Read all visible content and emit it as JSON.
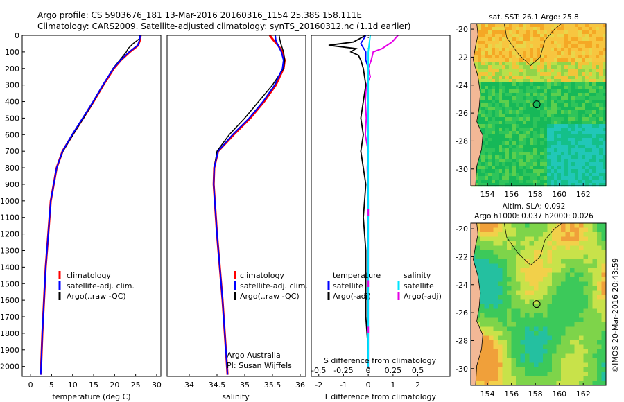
{
  "header": {
    "line1": "Argo profile: CS 5903676_181 13-Mar-2016 20160316_1154 25.38S 158.111E",
    "line2": "Climatology: CARS2009. Satellite-adjusted climatology: synTS_20160312.nc (1.1d earlier)"
  },
  "credit": "©IMOS 20-Mar-2016 20:43:59",
  "colors": {
    "climatology": "#ff0000",
    "satellite": "#0000ff",
    "argo": "#000000",
    "sat_diff_s": "#00e5ff",
    "argo_diff_s": "#e600e6"
  },
  "chart_data": [
    {
      "type": "line",
      "xlabel": "temperature (deg C)",
      "ylabel": "",
      "xlim": [
        -2,
        31
      ],
      "ylim": [
        2060,
        0
      ],
      "xticks": [
        0,
        5,
        10,
        15,
        20,
        25,
        30
      ],
      "yticks": [
        0,
        100,
        200,
        300,
        400,
        500,
        600,
        700,
        800,
        900,
        1000,
        1100,
        1200,
        1300,
        1400,
        1500,
        1600,
        1700,
        1800,
        1900,
        2000
      ],
      "legend": [
        "climatology",
        "satellite-adj. clim.",
        "Argo(..raw -QC)"
      ],
      "series": [
        {
          "name": "climatology",
          "depth": [
            0,
            30,
            60,
            100,
            150,
            200,
            300,
            400,
            500,
            600,
            700,
            800,
            1000,
            1200,
            1400,
            1600,
            1800,
            2000,
            2050
          ],
          "values": [
            26.2,
            26.0,
            25.6,
            23.6,
            21.5,
            19.8,
            17.3,
            15.0,
            12.5,
            10.0,
            7.6,
            6.2,
            4.8,
            4.2,
            3.6,
            3.2,
            2.8,
            2.5,
            2.4
          ]
        },
        {
          "name": "satellite-adj. clim.",
          "depth": [
            0,
            30,
            60,
            100,
            150,
            200,
            300,
            400,
            500,
            600,
            700,
            800,
            1000,
            1200,
            1400,
            1600,
            1800,
            2000,
            2050
          ],
          "values": [
            26.1,
            25.9,
            25.5,
            23.5,
            21.4,
            19.7,
            17.2,
            14.9,
            12.4,
            9.9,
            7.6,
            6.2,
            4.8,
            4.2,
            3.6,
            3.2,
            2.8,
            2.5,
            2.4
          ]
        },
        {
          "name": "Argo(..raw -QC)",
          "depth": [
            0,
            20,
            50,
            80,
            100,
            150,
            200,
            300,
            400,
            500,
            600,
            700,
            800,
            1000,
            1200,
            1400,
            1600,
            1800,
            2000
          ],
          "values": [
            26.0,
            25.9,
            24.4,
            23.2,
            22.8,
            21.2,
            19.6,
            17.3,
            15.0,
            12.6,
            10.1,
            7.7,
            6.2,
            4.8,
            4.2,
            3.6,
            3.2,
            2.8,
            2.5
          ]
        }
      ]
    },
    {
      "type": "line",
      "xlabel": "salinity",
      "ylabel": "",
      "xlim": [
        33.6,
        36.1
      ],
      "ylim": [
        2060,
        0
      ],
      "xticks": [
        34,
        34.5,
        35,
        35.5,
        36
      ],
      "legend": [
        "climatology",
        "satellite-adj. clim.",
        "Argo(..raw -QC)"
      ],
      "annotations": [
        "Argo Australia",
        "PI: Susan Wijffels"
      ],
      "series": [
        {
          "name": "climatology",
          "depth": [
            0,
            30,
            60,
            100,
            150,
            200,
            300,
            400,
            500,
            600,
            700,
            800,
            900,
            1000,
            1200,
            1400,
            1600,
            1800,
            2000,
            2050
          ],
          "values": [
            35.45,
            35.52,
            35.6,
            35.68,
            35.72,
            35.7,
            35.56,
            35.35,
            35.1,
            34.8,
            34.52,
            34.45,
            34.44,
            34.46,
            34.5,
            34.55,
            34.6,
            34.64,
            34.68,
            34.69
          ]
        },
        {
          "name": "satellite-adj. clim.",
          "depth": [
            0,
            30,
            60,
            100,
            150,
            200,
            300,
            400,
            500,
            600,
            700,
            800,
            900,
            1000,
            1200,
            1400,
            1600,
            1800,
            2000,
            2050
          ],
          "values": [
            35.55,
            35.56,
            35.6,
            35.66,
            35.7,
            35.68,
            35.54,
            35.33,
            35.08,
            34.78,
            34.52,
            34.45,
            34.44,
            34.46,
            34.5,
            34.55,
            34.6,
            34.64,
            34.68,
            34.69
          ]
        },
        {
          "name": "Argo(..raw -QC)",
          "depth": [
            0,
            20,
            50,
            100,
            150,
            200,
            300,
            400,
            500,
            600,
            700,
            800,
            900,
            1000,
            1200,
            1400,
            1600,
            1800,
            2000
          ],
          "values": [
            35.62,
            35.63,
            35.65,
            35.7,
            35.72,
            35.7,
            35.5,
            35.25,
            35.0,
            34.72,
            34.5,
            34.45,
            34.44,
            34.46,
            34.5,
            34.55,
            34.6,
            34.64,
            34.68
          ]
        }
      ]
    },
    {
      "type": "line",
      "xlabel": "T difference from climatology",
      "xlabel_top": "S difference from climatology",
      "xlim": [
        -2.3,
        3.3
      ],
      "ylim": [
        2060,
        0
      ],
      "xticks": [
        -2,
        -1,
        0,
        1,
        2
      ],
      "xticks_s": [
        -0.5,
        -0.25,
        0,
        0.25,
        0.5
      ],
      "legend_groups": [
        {
          "title": "temperature",
          "entries": [
            "satellite",
            "Argo(-adj)"
          ]
        },
        {
          "title": "salinity",
          "entries": [
            "satellite",
            "Argo(-adj)"
          ]
        }
      ],
      "series": [
        {
          "name": "temperature satellite",
          "depth": [
            0,
            50,
            100,
            150,
            200,
            300,
            400,
            600,
            800,
            1000,
            1500,
            2000
          ],
          "values": [
            -0.1,
            -0.3,
            -0.1,
            -0.1,
            0,
            0,
            0,
            0,
            0,
            0,
            0,
            0
          ]
        },
        {
          "name": "temperature Argo(-adj)",
          "depth": [
            0,
            40,
            60,
            80,
            100,
            120,
            150,
            200,
            300,
            400,
            500,
            600,
            700,
            900,
            1100,
            1300,
            1500,
            1700,
            1900,
            2000
          ],
          "values": [
            -0.1,
            -0.6,
            -1.6,
            -0.5,
            -0.7,
            -0.4,
            -0.3,
            -0.2,
            -0.1,
            -0.2,
            -0.3,
            -0.2,
            -0.3,
            -0.1,
            -0.2,
            -0.1,
            -0.1,
            -0.1,
            0,
            0
          ]
        },
        {
          "name": "salinity satellite",
          "depth": [
            0,
            50,
            100,
            150,
            200,
            300,
            500,
            800,
            1000,
            1500,
            2000
          ],
          "values": [
            0.02,
            0.01,
            0,
            0,
            0,
            0,
            0,
            0,
            0,
            0,
            0
          ]
        },
        {
          "name": "salinity Argo(-adj)",
          "depth": [
            0,
            40,
            80,
            100,
            150,
            200,
            250,
            300,
            400,
            500,
            600,
            700,
            800,
            1000,
            1500,
            2000
          ],
          "values": [
            0.3,
            0.24,
            0.14,
            0.05,
            0.03,
            0,
            0.02,
            -0.02,
            -0.03,
            -0.02,
            -0.03,
            0,
            -0.01,
            0,
            0,
            0
          ]
        }
      ]
    },
    {
      "type": "heatmap",
      "title": "sat. SST: 26.1  Argo: 25.8",
      "xlim": [
        152.6,
        163.9
      ],
      "ylim": [
        -31.2,
        -19.6
      ],
      "xticks": [
        154,
        156,
        158,
        160,
        162
      ],
      "yticks": [
        -20,
        -22,
        -24,
        -26,
        -28,
        -30
      ],
      "marker": {
        "lon": 158.111,
        "lat": -25.38
      }
    },
    {
      "type": "heatmap",
      "title": "Altim. SLA: 0.092",
      "subtitle": "Argo h1000: 0.037  h2000: 0.026",
      "xlim": [
        152.6,
        163.9
      ],
      "ylim": [
        -31.2,
        -19.6
      ],
      "xticks": [
        154,
        156,
        158,
        160,
        162
      ],
      "yticks": [
        -20,
        -22,
        -24,
        -26,
        -28,
        -30
      ],
      "marker": {
        "lon": 158.111,
        "lat": -25.38
      }
    }
  ]
}
